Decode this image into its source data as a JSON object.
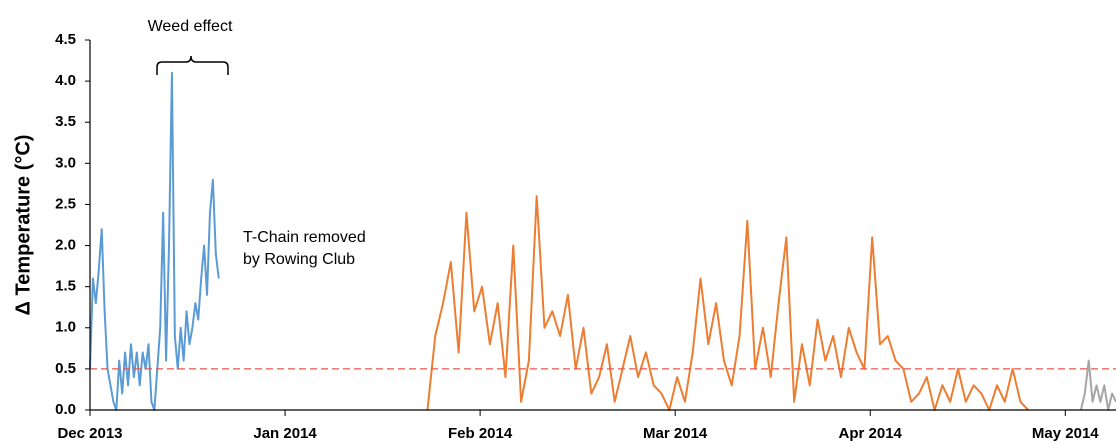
{
  "chart_data": {
    "type": "line",
    "ylabel": "Δ Temperature (°C)",
    "annotations": [
      "Weed effect",
      "T-Chain removed",
      "by Rowing Club"
    ],
    "xlim": [
      0,
      5.26
    ],
    "xticks": [
      {
        "value": 0,
        "label": "Dec 2013"
      },
      {
        "value": 1,
        "label": "Jan 2014"
      },
      {
        "value": 2,
        "label": "Feb 2014"
      },
      {
        "value": 3,
        "label": "Mar 2014"
      },
      {
        "value": 4,
        "label": "Apr 2014"
      },
      {
        "value": 5,
        "label": "May 2014"
      }
    ],
    "ylim": [
      0,
      4.5
    ],
    "yticks": [
      {
        "value": 0,
        "label": "0.0"
      },
      0.5,
      {
        "value": 1,
        "label": "1.0"
      },
      1.5,
      {
        "value": 2,
        "label": "2.0"
      },
      2.5,
      {
        "value": 3,
        "label": "3.0"
      },
      3.5,
      {
        "value": 4,
        "label": "4.0"
      },
      4.5
    ],
    "grid": false,
    "reference_line": {
      "value": 0.5,
      "color": "#e8554e"
    },
    "series": [
      {
        "color": "#5b9bd5",
        "x": [
          0,
          0.015,
          0.03,
          0.045,
          0.06,
          0.075,
          0.09,
          0.105,
          0.12,
          0.135,
          0.15,
          0.165,
          0.18,
          0.195,
          0.21,
          0.225,
          0.24,
          0.255,
          0.27,
          0.285,
          0.3,
          0.315,
          0.33,
          0.345,
          0.36,
          0.375,
          0.39,
          0.405,
          0.42,
          0.435,
          0.45,
          0.465,
          0.48,
          0.495,
          0.51,
          0.525,
          0.54,
          0.555,
          0.57,
          0.585,
          0.6,
          0.615,
          0.63,
          0.645,
          0.66
        ],
        "values": [
          0.5,
          1.6,
          1.3,
          1.7,
          2.2,
          1.2,
          0.5,
          0.3,
          0.1,
          0.0,
          0.6,
          0.2,
          0.7,
          0.3,
          0.8,
          0.4,
          0.7,
          0.3,
          0.7,
          0.5,
          0.8,
          0.1,
          0.0,
          0.5,
          1.0,
          2.4,
          0.6,
          2.0,
          4.1,
          0.9,
          0.5,
          1.0,
          0.6,
          1.2,
          0.8,
          1.0,
          1.3,
          1.1,
          1.6,
          2.0,
          1.4,
          2.4,
          2.8,
          1.9,
          1.6
        ]
      },
      {
        "color": "#ed7d31",
        "x": [
          1.73,
          1.77,
          1.81,
          1.85,
          1.89,
          1.93,
          1.97,
          2.01,
          2.05,
          2.09,
          2.13,
          2.17,
          2.21,
          2.25,
          2.29,
          2.33,
          2.37,
          2.41,
          2.45,
          2.49,
          2.53,
          2.57,
          2.61,
          2.65,
          2.69,
          2.73,
          2.77,
          2.81,
          2.85,
          2.89,
          2.93,
          2.97,
          3.01,
          3.05,
          3.09,
          3.13,
          3.17,
          3.21,
          3.25,
          3.29,
          3.33,
          3.37,
          3.41,
          3.45,
          3.49,
          3.53,
          3.57,
          3.61,
          3.65,
          3.69,
          3.73,
          3.77,
          3.81,
          3.85,
          3.89,
          3.93,
          3.97,
          4.01,
          4.05,
          4.09,
          4.13,
          4.17,
          4.21,
          4.25,
          4.29,
          4.33,
          4.37,
          4.41,
          4.45,
          4.49,
          4.53,
          4.57,
          4.61,
          4.65,
          4.69,
          4.73,
          4.77,
          4.81
        ],
        "values": [
          0.0,
          0.9,
          1.3,
          1.8,
          0.7,
          2.4,
          1.2,
          1.5,
          0.8,
          1.3,
          0.4,
          2.0,
          0.1,
          0.6,
          2.6,
          1.0,
          1.2,
          0.9,
          1.4,
          0.5,
          1.0,
          0.2,
          0.4,
          0.8,
          0.1,
          0.5,
          0.9,
          0.4,
          0.7,
          0.3,
          0.2,
          0.0,
          0.4,
          0.1,
          0.7,
          1.6,
          0.8,
          1.3,
          0.6,
          0.3,
          0.9,
          2.3,
          0.5,
          1.0,
          0.4,
          1.3,
          2.1,
          0.1,
          0.8,
          0.3,
          1.1,
          0.6,
          0.9,
          0.4,
          1.0,
          0.7,
          0.5,
          2.1,
          0.8,
          0.9,
          0.6,
          0.5,
          0.1,
          0.2,
          0.4,
          0.0,
          0.3,
          0.1,
          0.5,
          0.1,
          0.3,
          0.2,
          0.0,
          0.3,
          0.1,
          0.5,
          0.1,
          0.0
        ]
      },
      {
        "color": "#a5a5a5",
        "x": [
          5.08,
          5.1,
          5.12,
          5.14,
          5.16,
          5.18,
          5.2,
          5.22,
          5.24,
          5.26
        ],
        "values": [
          0.0,
          0.2,
          0.6,
          0.1,
          0.3,
          0.1,
          0.3,
          0.0,
          0.2,
          0.1
        ]
      }
    ]
  }
}
